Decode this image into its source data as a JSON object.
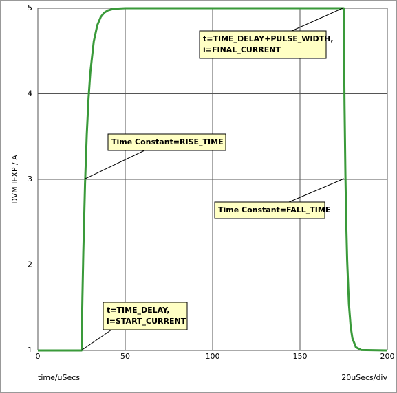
{
  "chart_data": {
    "type": "line",
    "ylabel": "DVM IEXP / A",
    "xlabel": "time/uSecs",
    "xscale_note": "20uSecs/div",
    "xlim": [
      0,
      200
    ],
    "ylim": [
      1,
      5
    ],
    "xticks": [
      0,
      50,
      100,
      150,
      200
    ],
    "yticks": [
      1,
      2,
      3,
      4,
      5
    ],
    "grid": true,
    "series": [
      {
        "color": "#3a9a3a",
        "x": [
          0,
          25,
          25.5,
          26,
          27,
          28,
          29,
          30,
          32,
          34,
          36,
          38,
          40,
          43,
          46,
          50,
          100,
          175,
          175.5,
          176,
          176.5,
          177,
          178,
          179,
          180,
          182,
          185,
          200
        ],
        "values": [
          1,
          1,
          1.614,
          2.134,
          2.947,
          3.528,
          3.946,
          4.244,
          4.612,
          4.801,
          4.898,
          4.948,
          4.973,
          4.99,
          4.996,
          5,
          5,
          5,
          3.866,
          3.054,
          2.472,
          2.054,
          1.541,
          1.278,
          1.143,
          1.038,
          1.005,
          1
        ]
      }
    ],
    "annotations": [
      {
        "lines": [
          "t=TIME_DELAY+PULSE_WIDTH,",
          "i=FINAL_CURRENT"
        ]
      },
      {
        "lines": [
          "Time Constant=RISE_TIME"
        ]
      },
      {
        "lines": [
          "Time Constant=FALL_TIME"
        ]
      },
      {
        "lines": [
          "t=TIME_DELAY,",
          "i=START_CURRENT"
        ]
      }
    ]
  }
}
